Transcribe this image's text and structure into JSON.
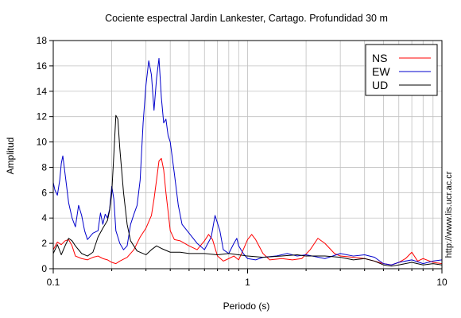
{
  "chart_data": {
    "type": "line",
    "title": "Cociente espectral Jardin Lankester, Cartago. Profundidad 30 m",
    "xlabel": "Periodo (s)",
    "ylabel": "Amplitud",
    "xscale": "log",
    "xlim": [
      0.1,
      10
    ],
    "ylim": [
      0,
      18
    ],
    "xticks": [
      0.1,
      1,
      10
    ],
    "xtick_labels": [
      "0.1",
      "1",
      "10"
    ],
    "yticks": [
      0,
      2,
      4,
      6,
      8,
      10,
      12,
      14,
      16,
      18
    ],
    "ytick_labels": [
      "0",
      "2",
      "4",
      "6",
      "8",
      "10",
      "12",
      "14",
      "16",
      "18"
    ],
    "grid": true,
    "legend_position": "top-right",
    "credit": "http://www.lis.ucr.ac.cr",
    "series": [
      {
        "name": "NS",
        "color": "#ff0000",
        "points": [
          [
            0.1,
            1.5
          ],
          [
            0.105,
            2.1
          ],
          [
            0.11,
            1.9
          ],
          [
            0.115,
            2.2
          ],
          [
            0.12,
            2.3
          ],
          [
            0.125,
            1.8
          ],
          [
            0.13,
            1.0
          ],
          [
            0.14,
            0.8
          ],
          [
            0.15,
            0.7
          ],
          [
            0.16,
            0.9
          ],
          [
            0.17,
            1.0
          ],
          [
            0.18,
            0.8
          ],
          [
            0.19,
            0.7
          ],
          [
            0.2,
            0.5
          ],
          [
            0.21,
            0.4
          ],
          [
            0.22,
            0.6
          ],
          [
            0.24,
            0.9
          ],
          [
            0.26,
            1.5
          ],
          [
            0.28,
            2.5
          ],
          [
            0.3,
            3.2
          ],
          [
            0.32,
            4.2
          ],
          [
            0.33,
            5.5
          ],
          [
            0.34,
            7.0
          ],
          [
            0.35,
            8.5
          ],
          [
            0.36,
            8.7
          ],
          [
            0.37,
            7.8
          ],
          [
            0.38,
            6.0
          ],
          [
            0.39,
            4.5
          ],
          [
            0.4,
            3.0
          ],
          [
            0.42,
            2.3
          ],
          [
            0.45,
            2.2
          ],
          [
            0.5,
            1.8
          ],
          [
            0.55,
            1.5
          ],
          [
            0.6,
            2.2
          ],
          [
            0.63,
            2.7
          ],
          [
            0.66,
            2.3
          ],
          [
            0.7,
            1.0
          ],
          [
            0.75,
            0.6
          ],
          [
            0.8,
            0.8
          ],
          [
            0.85,
            1.0
          ],
          [
            0.9,
            0.7
          ],
          [
            0.95,
            1.5
          ],
          [
            1.0,
            2.3
          ],
          [
            1.05,
            2.7
          ],
          [
            1.1,
            2.3
          ],
          [
            1.2,
            1.2
          ],
          [
            1.3,
            0.7
          ],
          [
            1.5,
            0.8
          ],
          [
            1.7,
            0.7
          ],
          [
            1.9,
            0.8
          ],
          [
            2.1,
            1.5
          ],
          [
            2.3,
            2.4
          ],
          [
            2.5,
            2.0
          ],
          [
            2.8,
            1.2
          ],
          [
            3.0,
            1.0
          ],
          [
            3.5,
            0.9
          ],
          [
            4.0,
            0.8
          ],
          [
            4.5,
            0.6
          ],
          [
            5.0,
            0.4
          ],
          [
            5.5,
            0.3
          ],
          [
            6.0,
            0.5
          ],
          [
            6.5,
            0.8
          ],
          [
            7.0,
            1.3
          ],
          [
            7.5,
            0.6
          ],
          [
            8.0,
            0.8
          ],
          [
            9.0,
            0.5
          ],
          [
            10.0,
            0.4
          ]
        ]
      },
      {
        "name": "EW",
        "color": "#0000cc",
        "points": [
          [
            0.1,
            6.8
          ],
          [
            0.102,
            6.2
          ],
          [
            0.105,
            5.8
          ],
          [
            0.108,
            7.0
          ],
          [
            0.11,
            8.3
          ],
          [
            0.112,
            8.9
          ],
          [
            0.115,
            7.5
          ],
          [
            0.12,
            5.2
          ],
          [
            0.125,
            4.0
          ],
          [
            0.13,
            3.3
          ],
          [
            0.135,
            5.0
          ],
          [
            0.14,
            4.2
          ],
          [
            0.145,
            3.0
          ],
          [
            0.15,
            2.3
          ],
          [
            0.16,
            2.8
          ],
          [
            0.17,
            3.0
          ],
          [
            0.175,
            4.4
          ],
          [
            0.18,
            3.5
          ],
          [
            0.185,
            4.3
          ],
          [
            0.19,
            4.0
          ],
          [
            0.195,
            4.7
          ],
          [
            0.2,
            6.5
          ],
          [
            0.205,
            5.5
          ],
          [
            0.21,
            3.0
          ],
          [
            0.215,
            2.5
          ],
          [
            0.22,
            2.0
          ],
          [
            0.23,
            1.5
          ],
          [
            0.24,
            1.8
          ],
          [
            0.25,
            3.5
          ],
          [
            0.26,
            4.3
          ],
          [
            0.27,
            5.0
          ],
          [
            0.28,
            7.0
          ],
          [
            0.29,
            11.5
          ],
          [
            0.3,
            14.5
          ],
          [
            0.31,
            16.4
          ],
          [
            0.32,
            15.3
          ],
          [
            0.33,
            12.5
          ],
          [
            0.34,
            15.0
          ],
          [
            0.35,
            16.6
          ],
          [
            0.36,
            13.5
          ],
          [
            0.37,
            11.5
          ],
          [
            0.38,
            11.8
          ],
          [
            0.39,
            10.5
          ],
          [
            0.4,
            10.0
          ],
          [
            0.42,
            7.5
          ],
          [
            0.44,
            5.0
          ],
          [
            0.46,
            3.5
          ],
          [
            0.5,
            2.8
          ],
          [
            0.55,
            2.0
          ],
          [
            0.6,
            1.5
          ],
          [
            0.65,
            2.5
          ],
          [
            0.68,
            4.2
          ],
          [
            0.72,
            3.0
          ],
          [
            0.75,
            1.5
          ],
          [
            0.8,
            1.2
          ],
          [
            0.85,
            2.0
          ],
          [
            0.88,
            2.4
          ],
          [
            0.9,
            1.8
          ],
          [
            0.95,
            1.2
          ],
          [
            1.0,
            0.8
          ],
          [
            1.1,
            0.7
          ],
          [
            1.2,
            0.9
          ],
          [
            1.4,
            1.0
          ],
          [
            1.6,
            1.2
          ],
          [
            1.8,
            1.0
          ],
          [
            2.0,
            1.1
          ],
          [
            2.5,
            0.8
          ],
          [
            3.0,
            1.2
          ],
          [
            3.5,
            1.0
          ],
          [
            4.0,
            1.1
          ],
          [
            4.5,
            0.9
          ],
          [
            5.0,
            0.4
          ],
          [
            5.5,
            0.3
          ],
          [
            6.0,
            0.5
          ],
          [
            7.0,
            0.7
          ],
          [
            8.0,
            0.4
          ],
          [
            9.0,
            0.6
          ],
          [
            10.0,
            0.7
          ]
        ]
      },
      {
        "name": "UD",
        "color": "#000000",
        "points": [
          [
            0.1,
            1.2
          ],
          [
            0.105,
            1.9
          ],
          [
            0.11,
            1.1
          ],
          [
            0.115,
            1.8
          ],
          [
            0.12,
            2.4
          ],
          [
            0.125,
            2.2
          ],
          [
            0.13,
            1.8
          ],
          [
            0.14,
            1.2
          ],
          [
            0.15,
            1.0
          ],
          [
            0.16,
            1.3
          ],
          [
            0.17,
            2.5
          ],
          [
            0.18,
            3.2
          ],
          [
            0.19,
            3.8
          ],
          [
            0.195,
            4.6
          ],
          [
            0.2,
            6.0
          ],
          [
            0.205,
            9.0
          ],
          [
            0.21,
            12.1
          ],
          [
            0.215,
            11.8
          ],
          [
            0.22,
            9.5
          ],
          [
            0.23,
            6.0
          ],
          [
            0.24,
            3.5
          ],
          [
            0.25,
            2.2
          ],
          [
            0.27,
            1.4
          ],
          [
            0.3,
            1.1
          ],
          [
            0.32,
            1.5
          ],
          [
            0.34,
            1.8
          ],
          [
            0.36,
            1.6
          ],
          [
            0.4,
            1.3
          ],
          [
            0.45,
            1.3
          ],
          [
            0.5,
            1.2
          ],
          [
            0.6,
            1.2
          ],
          [
            0.7,
            1.1
          ],
          [
            0.8,
            1.2
          ],
          [
            0.9,
            1.1
          ],
          [
            1.0,
            1.0
          ],
          [
            1.2,
            0.9
          ],
          [
            1.5,
            1.0
          ],
          [
            1.8,
            1.1
          ],
          [
            2.0,
            1.0
          ],
          [
            2.5,
            1.0
          ],
          [
            3.0,
            0.9
          ],
          [
            3.5,
            0.7
          ],
          [
            4.0,
            0.8
          ],
          [
            4.5,
            0.6
          ],
          [
            5.0,
            0.3
          ],
          [
            5.5,
            0.2
          ],
          [
            6.0,
            0.3
          ],
          [
            7.0,
            0.5
          ],
          [
            8.0,
            0.3
          ],
          [
            9.0,
            0.4
          ],
          [
            10.0,
            0.3
          ]
        ]
      }
    ]
  }
}
